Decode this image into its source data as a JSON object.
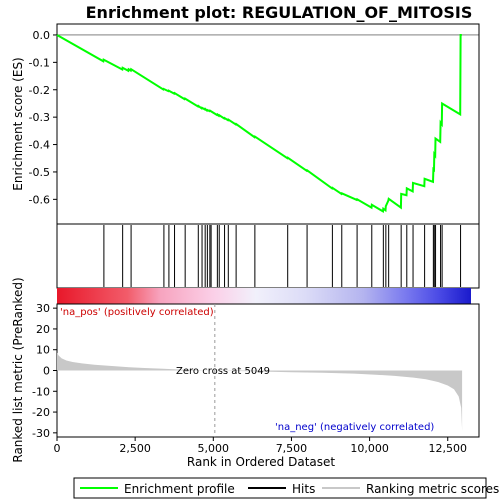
{
  "chart_data": {
    "type": "line",
    "title": "Enrichment plot: REGULATION_OF_MITOSIS",
    "top_panel": {
      "ylabel": "Enrichment score (ES)",
      "ylim": [
        -0.69,
        0.04
      ],
      "yticks": [
        "0.0",
        "-0.1",
        "-0.2",
        "-0.3",
        "-0.4",
        "-0.5",
        "-0.6"
      ],
      "ytick_values": [
        0.0,
        -0.1,
        -0.2,
        -0.3,
        -0.4,
        -0.5,
        -0.6
      ],
      "series": [
        {
          "name": "Enrichment profile",
          "color": "#00ff00",
          "x": [
            0,
            1480,
            1490,
            2090,
            2100,
            2280,
            2290,
            2360,
            2370,
            3400,
            3410,
            3560,
            3570,
            3750,
            3760,
            4080,
            4090,
            4510,
            4520,
            4630,
            4640,
            4730,
            4740,
            4800,
            4810,
            4880,
            4890,
            5120,
            5130,
            5180,
            5190,
            5350,
            5360,
            5470,
            5480,
            5720,
            5730,
            6320,
            6330,
            7370,
            7380,
            7990,
            8000,
            8800,
            8810,
            9100,
            9110,
            9590,
            9600,
            10060,
            10070,
            10430,
            10440,
            10510,
            10520,
            10600,
            10610,
            11000,
            11010,
            11180,
            11190,
            11380,
            11390,
            11750,
            11760,
            12030,
            12040,
            12060,
            12070,
            12100,
            12110,
            12260,
            12270,
            12310,
            12320,
            12900,
            12910,
            12950
          ],
          "y": [
            0.0,
            -0.096,
            -0.09,
            -0.126,
            -0.12,
            -0.131,
            -0.125,
            -0.13,
            -0.125,
            -0.199,
            -0.197,
            -0.205,
            -0.203,
            -0.214,
            -0.212,
            -0.234,
            -0.232,
            -0.261,
            -0.259,
            -0.268,
            -0.266,
            -0.272,
            -0.27,
            -0.276,
            -0.274,
            -0.278,
            -0.276,
            -0.292,
            -0.29,
            -0.295,
            -0.293,
            -0.305,
            -0.303,
            -0.311,
            -0.309,
            -0.327,
            -0.325,
            -0.373,
            -0.371,
            -0.45,
            -0.448,
            -0.496,
            -0.494,
            -0.56,
            -0.558,
            -0.58,
            -0.578,
            -0.602,
            -0.6,
            -0.63,
            -0.62,
            -0.644,
            -0.634,
            -0.64,
            -0.625,
            -0.605,
            -0.598,
            -0.63,
            -0.58,
            -0.585,
            -0.56,
            -0.571,
            -0.54,
            -0.552,
            -0.525,
            -0.536,
            -0.49,
            -0.492,
            -0.435,
            -0.44,
            -0.378,
            -0.39,
            -0.32,
            -0.326,
            -0.25,
            -0.29,
            0.0,
            0.0
          ],
          "line_width": 2
        }
      ],
      "hits_x": [
        1500,
        2100,
        2370,
        3420,
        3580,
        3760,
        4100,
        4520,
        4640,
        4740,
        4810,
        4890,
        4930,
        5130,
        5190,
        5360,
        5480,
        5730,
        6330,
        7380,
        8000,
        8810,
        9110,
        9600,
        10070,
        10440,
        10520,
        10610,
        11010,
        11190,
        11390,
        11760,
        12040,
        12070,
        12110,
        12270,
        12320,
        12910
      ]
    },
    "bottom_panel": {
      "ylabel": "Ranked list metric (PreRanked)",
      "xlabel": "Rank in Ordered Dataset",
      "ylim": [
        -32,
        32
      ],
      "yticks": [
        "30",
        "20",
        "10",
        "0",
        "-10",
        "-20",
        "-30"
      ],
      "ytick_values": [
        30,
        20,
        10,
        0,
        -10,
        -20,
        -30
      ],
      "xlim": [
        0,
        13500
      ],
      "xticks": [
        "0",
        "2,500",
        "5,000",
        "7,500",
        "10,000",
        "12,500"
      ],
      "xtick_values": [
        0,
        2500,
        5000,
        7500,
        10000,
        12500
      ],
      "zero_cross_label": "Zero cross at 5049",
      "zero_cross": 5049,
      "pos_label": "'na_pos' (positively correlated)",
      "neg_label": "'na_neg' (negatively correlated)",
      "pos_label_color": "#cc0000",
      "neg_label_color": "#0000cc",
      "metric_x": [
        0,
        50,
        150,
        300,
        500,
        800,
        1200,
        1700,
        2200,
        2800,
        3400,
        4000,
        4600,
        5049,
        5600,
        6500,
        7500,
        8500,
        9500,
        10200,
        10800,
        11400,
        11800,
        12200,
        12500,
        12700,
        12850,
        12930,
        12960
      ],
      "metric_y": [
        8.6,
        7.2,
        5.8,
        4.8,
        4.1,
        3.4,
        2.8,
        2.2,
        1.7,
        1.2,
        0.8,
        0.45,
        0.15,
        0.0,
        -0.2,
        -0.5,
        -0.8,
        -1.1,
        -1.5,
        -2.0,
        -2.6,
        -3.4,
        -4.2,
        -5.6,
        -7.2,
        -9.0,
        -12.5,
        -18.0,
        -29.0
      ],
      "metric_color": "#c8c8c8"
    },
    "legend": [
      {
        "label": "Enrichment profile",
        "color": "#00ff00"
      },
      {
        "label": "Hits",
        "color": "#000000"
      },
      {
        "label": "Ranking metric scores",
        "color": "#c8c8c8"
      }
    ]
  }
}
